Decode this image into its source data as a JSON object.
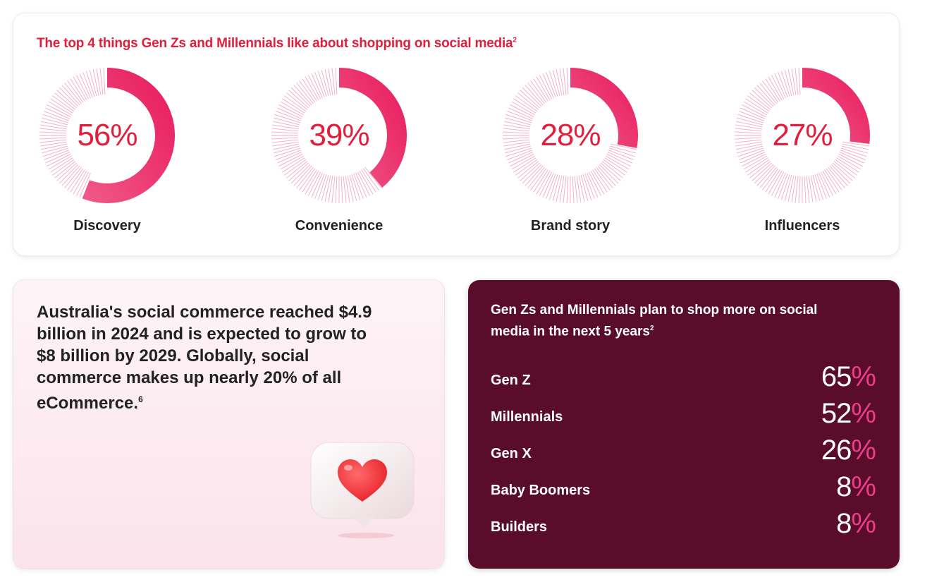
{
  "top_panel": {
    "title": "The top 4 things Gen Zs and Millennials like about shopping on social media",
    "title_sup": "2"
  },
  "stat_panel": {
    "text": "Australia's social commerce reached $4.9 billion in 2024 and is expected to grow to $8 billion by 2029. Globally, social commerce makes up nearly 20% of all eCommerce.",
    "sup": "6"
  },
  "plan_panel": {
    "title": "Gen Zs and Millennials plan to shop more on social media in the next 5 years",
    "title_sup": "2"
  },
  "chart_data": [
    {
      "type": "pie",
      "categories": [
        "Discovery",
        "Convenience",
        "Brand story",
        "Influencers"
      ],
      "values": [
        56,
        39,
        28,
        27
      ],
      "value_labels": [
        "56%",
        "39%",
        "28%",
        "27%"
      ],
      "unit": "%",
      "max": 100,
      "colors": {
        "arc_start": "#e8185b",
        "arc_end": "#f05a8a",
        "track": "#f3a9c2",
        "text": "#e01f3d"
      }
    },
    {
      "type": "table",
      "categories": [
        "Gen Z",
        "Millennials",
        "Gen X",
        "Baby Boomers",
        "Builders"
      ],
      "values": [
        65,
        52,
        26,
        8,
        8
      ],
      "unit": "%",
      "colors": {
        "background": "#5a0d2a",
        "number": "#ffffff",
        "percent_sign": "#f03d8b"
      }
    }
  ]
}
